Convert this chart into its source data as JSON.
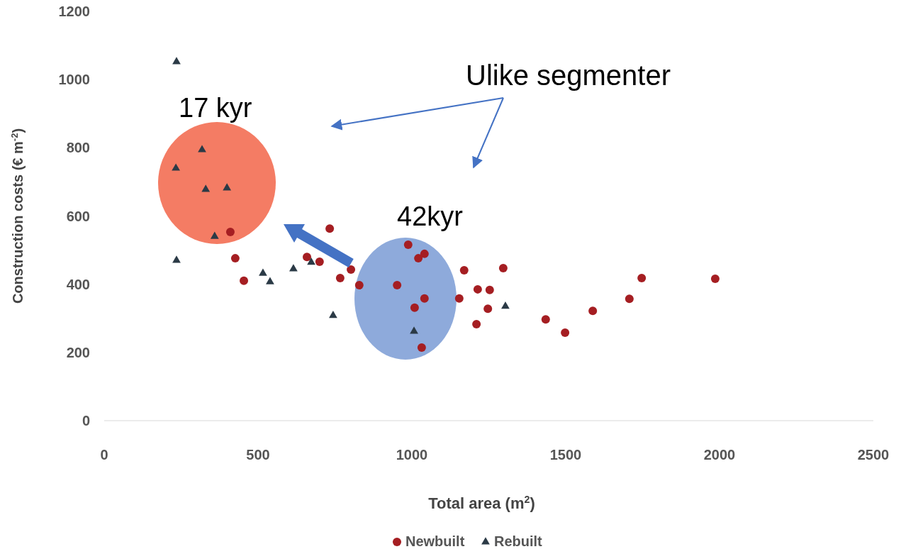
{
  "chart_data": {
    "type": "scatter",
    "xlabel": "Total area (m$^{2}$)",
    "ylabel": "Construction costs (€ m$^{-2}$)",
    "xlim": [
      0,
      2500
    ],
    "xticks": [
      0,
      500,
      1000,
      1500,
      2000,
      2500
    ],
    "ylim": [
      0,
      1200
    ],
    "yticks": [
      0,
      200,
      400,
      600,
      800,
      1000,
      1200
    ],
    "grid": false,
    "legend": "bottom",
    "annotations": [
      "Ulike segmenter",
      "17 kyr",
      "42kyr"
    ],
    "series": [
      {
        "name": "Newbuilt",
        "color": "#a51e22",
        "marker": "circle",
        "x": [
          410,
          426,
          454,
          733,
          659,
          700,
          802,
          767,
          829,
          952,
          988,
          1021,
          1041,
          1170,
          1214,
          1253,
          1297,
          1041,
          1154,
          1009,
          1247,
          1210,
          1032,
          1435,
          1498,
          1588,
          1707,
          1747,
          1986
        ],
        "values": [
          553,
          476,
          410,
          563,
          480,
          466,
          443,
          418,
          397,
          397,
          516,
          476,
          489,
          441,
          385,
          383,
          447,
          358,
          358,
          331,
          328,
          283,
          214,
          297,
          258,
          322,
          357,
          418,
          416
        ]
      },
      {
        "name": "Rebuilt",
        "color": "#2b3a46",
        "marker": "triangle",
        "x": [
          235,
          233,
          318,
          330,
          399,
          359,
          235,
          516,
          539,
          615,
          673,
          744,
          1007,
          1304
        ],
        "values": [
          1052,
          740,
          794,
          678,
          682,
          540,
          470,
          432,
          407,
          445,
          464,
          308,
          262,
          335
        ]
      }
    ]
  }
}
